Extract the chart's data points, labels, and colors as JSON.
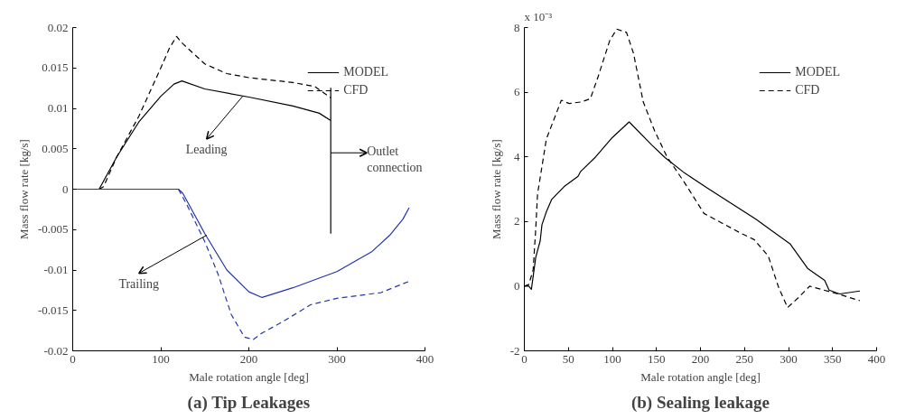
{
  "chart_data": [
    {
      "type": "line",
      "title": "(a) Tip Leakages",
      "xlabel": "Male rotation angle [deg]",
      "ylabel": "Mass flow rate [kg/s]",
      "xlim": [
        0,
        400
      ],
      "ylim": [
        -0.02,
        0.02
      ],
      "xticks": [
        0,
        100,
        200,
        300,
        400
      ],
      "yticks": [
        -0.02,
        -0.015,
        -0.01,
        -0.005,
        0,
        0.005,
        0.01,
        0.015,
        0.02
      ],
      "legend": "top right",
      "grid": false,
      "series": [
        {
          "name": "MODEL",
          "color": "#000000",
          "line_style": "solid",
          "x": [
            0,
            30,
            50,
            75,
            100,
            115,
            124,
            150,
            200,
            250,
            280,
            293,
            293,
            293
          ],
          "values": [
            0,
            0,
            0.004,
            0.0083,
            0.0115,
            0.013,
            0.0134,
            0.0124,
            0.0114,
            0.0103,
            0.0094,
            0.0085,
            0.0125,
            -0.0055
          ]
        },
        {
          "name": "CFD",
          "color": "#000000",
          "line_style": "dashed",
          "x": [
            30,
            35,
            50,
            75,
            100,
            110,
            118,
            125,
            150,
            175,
            200,
            250,
            275,
            293
          ],
          "values": [
            0,
            0.0003,
            0.004,
            0.009,
            0.015,
            0.0175,
            0.0189,
            0.018,
            0.0155,
            0.0143,
            0.0138,
            0.0132,
            0.0127,
            0.0113
          ]
        },
        {
          "color": "#2436a8",
          "line_style": "solid",
          "x": [
            0,
            120,
            125,
            150,
            175,
            200,
            215,
            250,
            300,
            340,
            360,
            375,
            382
          ],
          "values": [
            0,
            0,
            -0.0005,
            -0.0055,
            -0.01,
            -0.0127,
            -0.0134,
            -0.0122,
            -0.0102,
            -0.0077,
            -0.0057,
            -0.0037,
            -0.0023
          ]
        },
        {
          "color": "#2436a8",
          "line_style": "dashed",
          "x": [
            120,
            130,
            150,
            165,
            180,
            195,
            205,
            215,
            240,
            270,
            300,
            350,
            382
          ],
          "values": [
            0,
            -0.002,
            -0.0065,
            -0.0105,
            -0.0155,
            -0.0183,
            -0.0186,
            -0.0178,
            -0.0163,
            -0.0143,
            -0.0135,
            -0.0128,
            -0.0114
          ]
        }
      ],
      "annotations": [
        {
          "text": "Leading",
          "x": 193,
          "y": 0.0115
        },
        {
          "text": "Outlet connection",
          "x": 293,
          "y": 0.0045
        },
        {
          "text": "Trailing",
          "x": 152,
          "y": -0.0057
        }
      ]
    },
    {
      "type": "line",
      "title": "(b) Sealing leakage",
      "xlabel": "Male rotation angle [deg]",
      "ylabel": "Mass flow rate [kg/s]",
      "xlim": [
        0,
        400
      ],
      "ylim": [
        -2,
        8
      ],
      "xticks": [
        0,
        50,
        100,
        150,
        200,
        250,
        300,
        350,
        400
      ],
      "yticks": [
        -2,
        0,
        2,
        4,
        6,
        8
      ],
      "legend": "top right",
      "grid": false,
      "series": [
        {
          "name": "MODEL",
          "color": "#000000",
          "line_style": "solid",
          "x": [
            0,
            5,
            8,
            10,
            13,
            18,
            20,
            25,
            31,
            46,
            61,
            64,
            81,
            100,
            119,
            145,
            160,
            182,
            207,
            263,
            302,
            322,
            341,
            346,
            358,
            381
          ],
          "values": [
            0,
            0,
            -0.1,
            0.3,
            0.9,
            1.4,
            1.9,
            2.3,
            2.68,
            3.1,
            3.4,
            3.55,
            4.0,
            4.6,
            5.08,
            4.36,
            3.97,
            3.5,
            3.05,
            2.07,
            1.3,
            0.54,
            0.18,
            -0.12,
            -0.24,
            -0.15
          ]
        },
        {
          "name": "CFD",
          "color": "#000000",
          "line_style": "dashed",
          "x": [
            0,
            5,
            10,
            13,
            15,
            25,
            42,
            51,
            65,
            75,
            84,
            97,
            105,
            116,
            124,
            135,
            148,
            162,
            182,
            204,
            245,
            261,
            277,
            289,
            299,
            311,
            324,
            340,
            356,
            381
          ],
          "values": [
            0,
            0.05,
            0.5,
            1.8,
            2.85,
            4.55,
            5.75,
            5.65,
            5.7,
            5.8,
            6.5,
            7.6,
            7.95,
            7.85,
            7.2,
            5.7,
            4.8,
            4.0,
            3.2,
            2.25,
            1.65,
            1.44,
            0.93,
            -0.06,
            -0.66,
            -0.36,
            0.0,
            -0.12,
            -0.24,
            -0.45
          ]
        }
      ],
      "annotations": [
        "x 10⁻³"
      ]
    }
  ]
}
